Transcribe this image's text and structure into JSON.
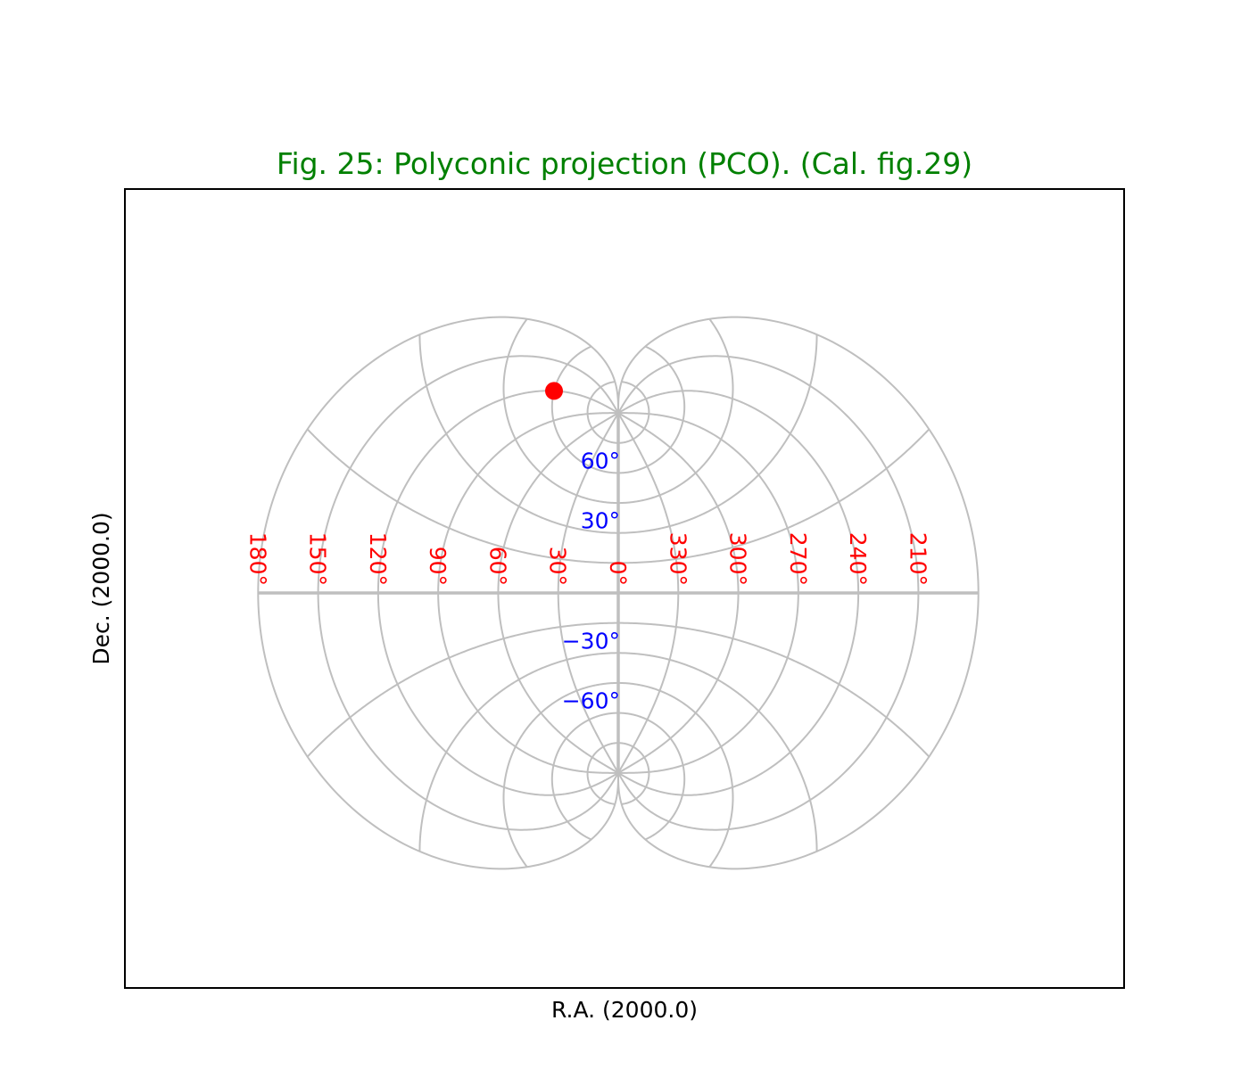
{
  "figure": {
    "title": "Fig. 25: Polyconic projection (PCO). (Cal. fig.29)",
    "xlabel": "R.A. (2000.0)",
    "ylabel": "Dec. (2000.0)",
    "colors": {
      "title": "#008000",
      "grid": "#bfbfbf",
      "ra_labels": "#ff0000",
      "dec_labels": "#0000ff",
      "marker": "#ff0000",
      "frame": "#000000"
    }
  },
  "graticule": {
    "projection": "PCO",
    "ra_center_deg": 0,
    "ra_lines_deg": [
      0,
      30,
      60,
      90,
      120,
      150,
      180,
      210,
      240,
      270,
      300,
      330
    ],
    "dec_lines_deg": [
      -90,
      -75,
      -60,
      -45,
      -30,
      -15,
      0,
      15,
      30,
      45,
      60,
      75,
      90
    ],
    "ra_ticks": [
      {
        "ra": 150,
        "label": "150°"
      },
      {
        "ra": 120,
        "label": "120°"
      },
      {
        "ra": 90,
        "label": "90°"
      },
      {
        "ra": 60,
        "label": "60°"
      },
      {
        "ra": 30,
        "label": "30°"
      },
      {
        "ra": 0,
        "label": "0°"
      },
      {
        "ra": 330,
        "label": "330°"
      },
      {
        "ra": 300,
        "label": "300°"
      },
      {
        "ra": 270,
        "label": "270°"
      },
      {
        "ra": 240,
        "label": "240°"
      },
      {
        "ra": 210,
        "label": "210°"
      },
      {
        "ra": 180,
        "label": "180°"
      }
    ],
    "dec_ticks": [
      {
        "dec": 60,
        "label": "60°"
      },
      {
        "dec": 30,
        "label": "30°"
      },
      {
        "dec": -30,
        "label": "−30°"
      },
      {
        "dec": -60,
        "label": "−60°"
      }
    ]
  },
  "marker": {
    "ra_deg": 120,
    "dec_deg": 60
  }
}
